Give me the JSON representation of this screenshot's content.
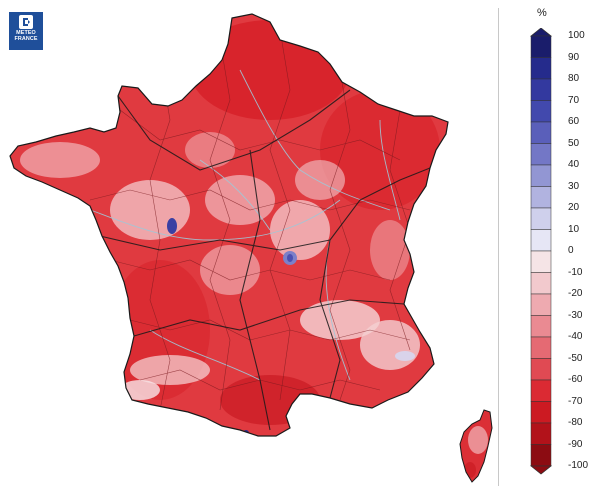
{
  "logo": {
    "line1": "METEO",
    "line2": "FRANCE"
  },
  "legend": {
    "unit": "%",
    "ticks": [
      "100",
      "90",
      "80",
      "70",
      "60",
      "50",
      "40",
      "30",
      "20",
      "10",
      "0",
      "-10",
      "-20",
      "-30",
      "-40",
      "-50",
      "-60",
      "-70",
      "-80",
      "-90",
      "-100"
    ],
    "colors": [
      "#1a1d6b",
      "#252b8c",
      "#33399f",
      "#4249ad",
      "#5a5fba",
      "#7377c6",
      "#9296d3",
      "#b1b3e0",
      "#cfd0ec",
      "#e6e6f5",
      "#f5e4e6",
      "#f2c9cd",
      "#eeaab0",
      "#ea8a92",
      "#e56a73",
      "#e04a53",
      "#db2a33",
      "#cc1a22",
      "#b2121a",
      "#8c0c12"
    ]
  }
}
